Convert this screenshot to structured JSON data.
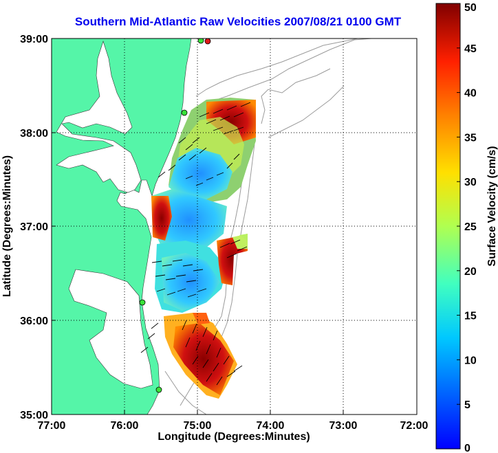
{
  "title": "Southern Mid-Atlantic Raw Velocities 2007/08/21 0100 GMT",
  "xlabel": "Longitude (Degrees:Minutes)",
  "ylabel": "Latitude (Degrees:Minutes)",
  "colorbar": {
    "label": "Surface Velocity (cm/s)",
    "min": 0,
    "max": 50,
    "ticks": [
      "0",
      "5",
      "10",
      "15",
      "20",
      "25",
      "30",
      "35",
      "40",
      "45",
      "50"
    ]
  },
  "x_ticks": [
    "77:00",
    "76:00",
    "75:00",
    "74:00",
    "73:00",
    "72:00"
  ],
  "y_ticks": [
    "39:00",
    "38:00",
    "37:00",
    "36:00",
    "35:00"
  ],
  "colors": {
    "land": "#55f5a8",
    "title": "#0000ee",
    "contour": "#9a9a9a",
    "station": "#39e23a",
    "station_red": "#e01818"
  },
  "chart_data": {
    "type": "heatmap",
    "xlim": [
      -77,
      -72
    ],
    "ylim": [
      35,
      39
    ],
    "grid": true,
    "projection": "lon/lat",
    "colormap": "jet",
    "clim": [
      0,
      50
    ]
  }
}
